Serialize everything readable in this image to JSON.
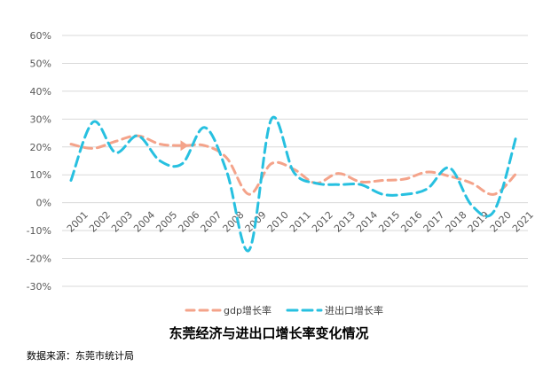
{
  "chart_data": {
    "type": "line",
    "title": "东莞经济与进出口增长率变化情况",
    "source": "数据来源：东莞市统计局",
    "x": [
      "2001",
      "2002",
      "2003",
      "2004",
      "2005",
      "2006",
      "2007",
      "2008",
      "2009",
      "2010",
      "2011",
      "2012",
      "2013",
      "2014",
      "2015",
      "2016",
      "2017",
      "2018",
      "2019",
      "2020",
      "2021"
    ],
    "y_ticks": [
      "60%",
      "50%",
      "40%",
      "30%",
      "20%",
      "10%",
      "0%",
      "-10%",
      "-20%",
      "-30%"
    ],
    "ylim": [
      -30,
      60
    ],
    "grid": true,
    "legend_position": "bottom",
    "series": [
      {
        "name": "gdp增长率",
        "color": "#F4A38A",
        "values": [
          21,
          19.5,
          22,
          24,
          21,
          20.5,
          20.5,
          16,
          3,
          14,
          12,
          7,
          10.5,
          7.5,
          8,
          8.5,
          11,
          9.5,
          7,
          3,
          10.5
        ]
      },
      {
        "name": "进出口增长率",
        "color": "#27C0E0",
        "values": [
          8,
          29,
          18,
          24,
          15,
          14,
          27,
          11,
          -17,
          30,
          11,
          7,
          6.5,
          6.5,
          3,
          3,
          5,
          12.5,
          -1,
          -3,
          24
        ]
      }
    ]
  }
}
